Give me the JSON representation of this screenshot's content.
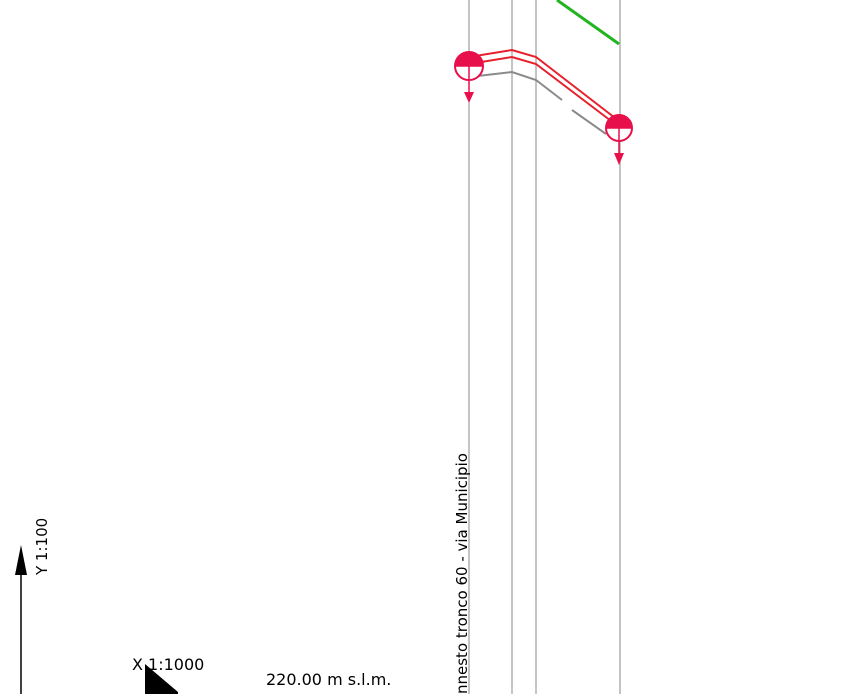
{
  "scales": {
    "y_scale": "Y 1:100",
    "x_scale": "X 1:1000"
  },
  "datum": {
    "reference_label": "220.00 m s.l.m."
  },
  "section": {
    "label": "nnesto tronco 60 - via Municipio"
  },
  "colors": {
    "pipe": "#e8202a",
    "manhole": "#e8104a",
    "ground_new": "#22b522",
    "ground_existing": "#8a8a8a",
    "lines": "#8a8a8a"
  },
  "icons": {
    "manhole_symbol": "manhole-icon",
    "flow_arrow": "arrow-down-icon",
    "axis_arrow": "arrow-up-icon"
  }
}
